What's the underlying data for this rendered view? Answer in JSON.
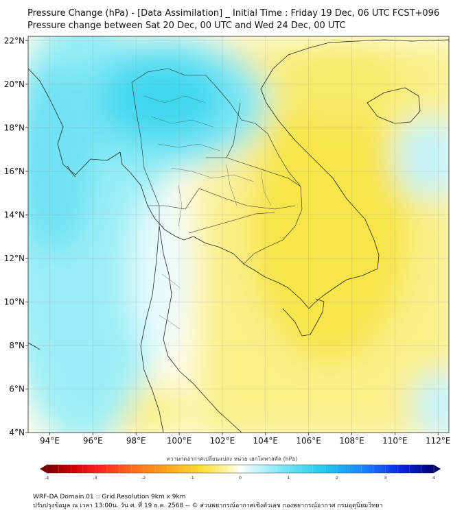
{
  "header": {
    "title_line1": "Pressure Change (hPa) - [Data Assimilation] _ Initial Time : Friday 19 Dec, 06 UTC FCST+096",
    "title_line2": "Pressure change between Sat 20 Dec, 00 UTC and Wed 24 Dec, 00 UTC"
  },
  "map": {
    "lon_labels": [
      "94°E",
      "96°E",
      "98°E",
      "100°E",
      "102°E",
      "104°E",
      "106°E",
      "108°E",
      "110°E",
      "112°E"
    ],
    "lat_labels": [
      "22°N",
      "20°N",
      "18°N",
      "16°N",
      "14°N",
      "12°N",
      "10°N",
      "8°N",
      "6°N",
      "4°N"
    ],
    "lon_values": [
      94,
      96,
      98,
      100,
      102,
      104,
      106,
      108,
      110,
      112
    ],
    "lat_values": [
      22,
      20,
      18,
      16,
      14,
      12,
      10,
      8,
      6,
      4
    ],
    "lon_range": [
      93,
      112.5
    ],
    "lat_range": [
      4,
      22.2
    ],
    "gridlines": true,
    "field": "pressure change (hPa)",
    "colors": {
      "fall_light": "#fff6c0",
      "fall": "#f6e84a",
      "rise_light": "#c8f4f8",
      "rise": "#2fd4ee",
      "coastline": "#222222"
    }
  },
  "colorbar": {
    "title": "ความกดอากาศเปลี่ยนแปลง หน่วย เฮกโตพาสคัล (hPa)",
    "tick_labels": [
      "-4",
      "-3",
      "-2",
      "-1",
      "0",
      "1",
      "2",
      "3",
      "4"
    ],
    "tick_values": [
      -4,
      -3,
      -2,
      -1,
      0,
      1,
      2,
      3,
      4
    ],
    "range": [
      -4,
      4
    ],
    "colors": [
      "#7a0000",
      "#e00000",
      "#ff5a1a",
      "#ff9a1a",
      "#ffd21a",
      "#fff37a",
      "#ffffff",
      "#bff3fb",
      "#3fd6ee",
      "#1a8cff",
      "#0a1ee0",
      "#000070"
    ]
  },
  "footer": {
    "line1": "WRF-DA Domain 01 :: Grid Resolution 9km x 9km",
    "line2": "ปรับปรุงข้อมูล ณ เวลา 13:00น. วัน ศ. ที่ 19 ธ.ค. 2568 -- © ส่วนพยากรณ์อากาศเชิงตัวเลข กองพยากรณ์อากาศ กรมอุตุนิยมวิทยา"
  }
}
